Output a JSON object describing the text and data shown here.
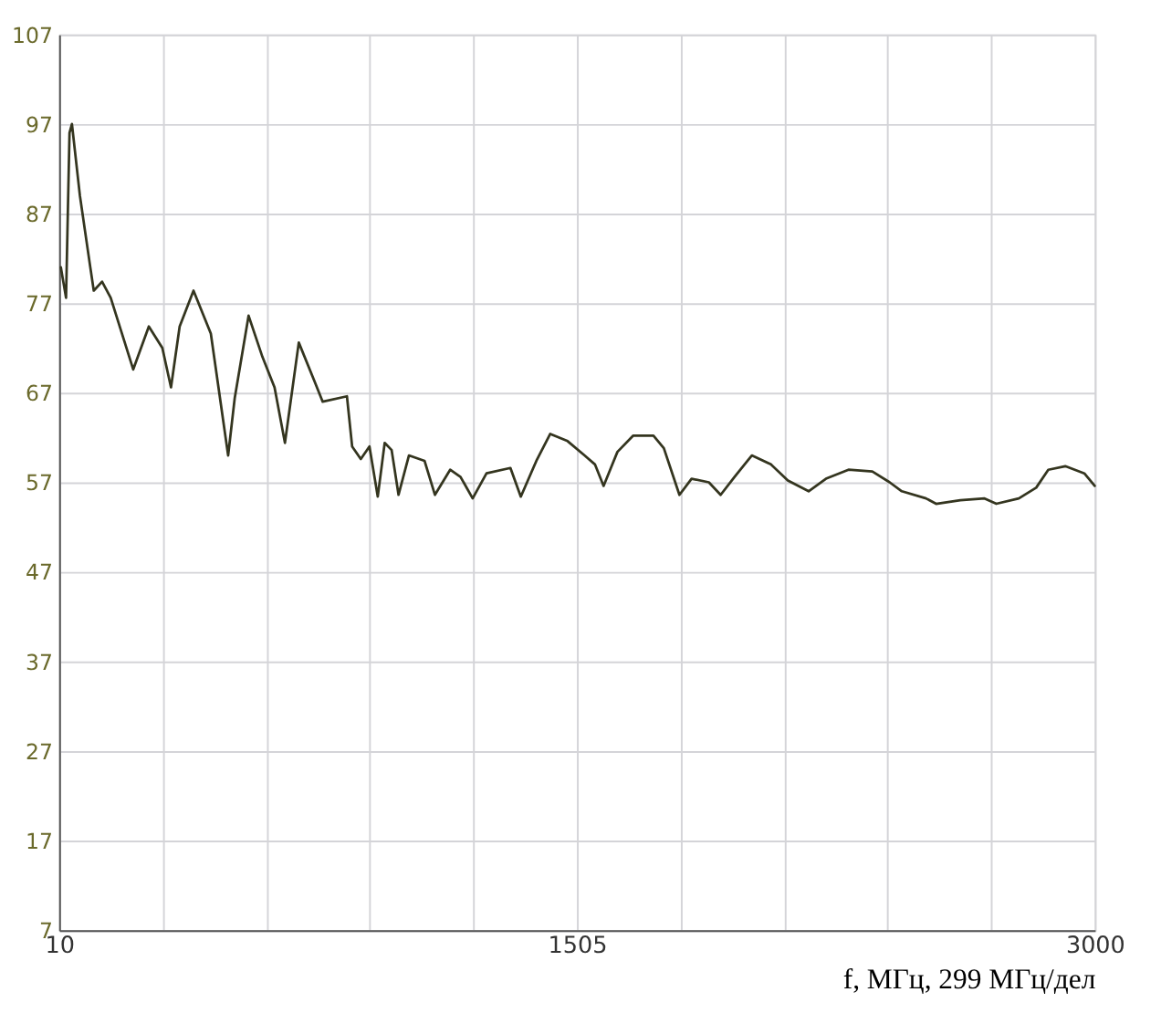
{
  "chart_data": {
    "type": "line",
    "xlabel": "f, МГц, 299 МГц/дел",
    "xlim": [
      10,
      3000
    ],
    "ylim": [
      7,
      107
    ],
    "xticks": [
      10,
      {
        "value": 309,
        "label": null
      },
      {
        "value": 608,
        "label": null
      },
      {
        "value": 907,
        "label": null
      },
      {
        "value": 1206,
        "label": null
      },
      1505,
      {
        "value": 1804,
        "label": null
      },
      {
        "value": 2103,
        "label": null
      },
      {
        "value": 2402,
        "label": null
      },
      {
        "value": 2701,
        "label": null
      },
      3000
    ],
    "yticks": [
      7,
      17,
      27,
      37,
      47,
      57,
      67,
      77,
      87,
      97,
      107
    ],
    "grid": true,
    "line_style": "solid",
    "marker": "none",
    "series": [
      {
        "color": "#34351f",
        "x": [
          15,
          22,
          30,
          40,
          47,
          70,
          100,
          110,
          134,
          159,
          224,
          269,
          308,
          333,
          358,
          398,
          448,
          498,
          517,
          557,
          597,
          632,
          662,
          702,
          746,
          771,
          841,
          856,
          881,
          906,
          930,
          950,
          970,
          990,
          1020,
          1065,
          1095,
          1139,
          1169,
          1204,
          1244,
          1313,
          1343,
          1388,
          1428,
          1478,
          1527,
          1557,
          1582,
          1622,
          1667,
          1726,
          1756,
          1801,
          1836,
          1886,
          1920,
          1960,
          2010,
          2065,
          2114,
          2174,
          2224,
          2289,
          2358,
          2408,
          2443,
          2513,
          2542,
          2612,
          2682,
          2716,
          2781,
          2831,
          2866,
          2915,
          2970,
          3000
        ],
        "values": [
          81,
          79.4,
          77.6,
          96,
          97,
          89,
          81,
          78.4,
          79.4,
          77.6,
          69.6,
          74.4,
          72,
          67.6,
          74.4,
          78.4,
          73.6,
          60,
          66.4,
          75.6,
          71,
          67.6,
          61.4,
          72.6,
          68.4,
          66,
          66.6,
          61,
          59.6,
          61,
          55.4,
          61.4,
          60.6,
          55.6,
          60,
          59.4,
          55.6,
          58.4,
          57.6,
          55.2,
          58,
          58.6,
          55.4,
          59.4,
          62.4,
          61.6,
          60,
          59,
          56.6,
          60.4,
          62.2,
          62.2,
          60.8,
          55.6,
          57.4,
          57,
          55.6,
          57.6,
          60,
          59,
          57.2,
          56,
          57.4,
          58.4,
          58.2,
          57,
          56,
          55.2,
          54.6,
          55,
          55.2,
          54.6,
          55.2,
          56.4,
          58.4,
          58.8,
          58,
          56.6
        ]
      }
    ]
  }
}
